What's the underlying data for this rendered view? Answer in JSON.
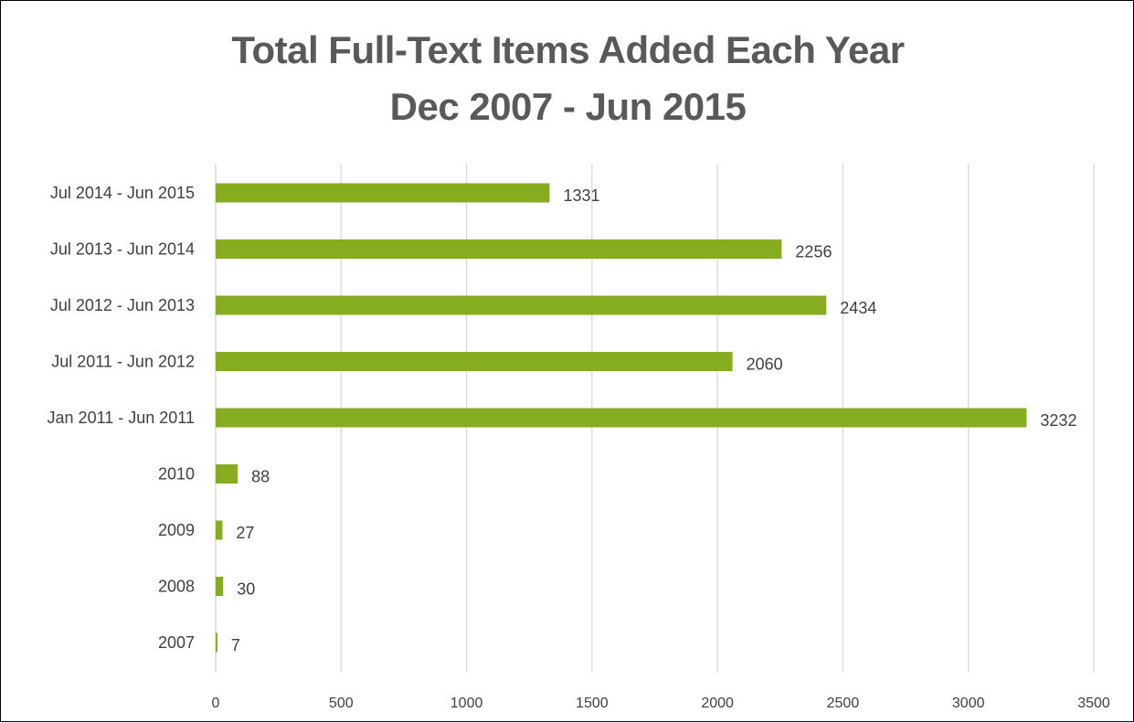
{
  "chart_data": {
    "type": "bar",
    "orientation": "horizontal",
    "title": [
      "Total Full-Text Items Added Each Year",
      "Dec 2007 - Jun 2015"
    ],
    "xlabel": "",
    "ylabel": "",
    "xlim": [
      0,
      3500
    ],
    "x_ticks": [
      "0",
      "500",
      "1000",
      "1500",
      "2000",
      "2500",
      "3000",
      "3500"
    ],
    "grid": "vertical",
    "legend": "none",
    "bar_color": "#86AC20",
    "categories": [
      "Jul 2014 - Jun 2015",
      "Jul 2013 - Jun 2014",
      "Jul 2012 - Jun 2013",
      "Jul 2011 - Jun 2012",
      "Jan 2011 - Jun 2011",
      "2010",
      "2009",
      "2008",
      "2007"
    ],
    "values": [
      1331,
      2256,
      2434,
      2060,
      3232,
      88,
      27,
      30,
      7
    ]
  }
}
